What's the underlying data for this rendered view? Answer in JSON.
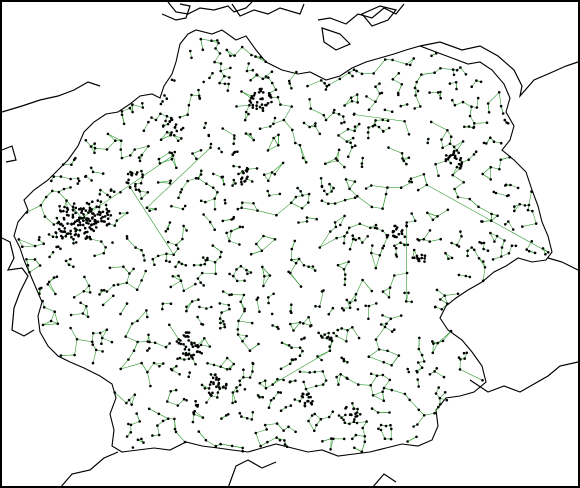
{
  "map": {
    "type": "power-grid-network",
    "region": "Germany",
    "colors": {
      "background": "#ffffff",
      "frame": "#000000",
      "borders": "#000000",
      "coastline": "#000000",
      "lines": "#2f9a2f",
      "nodes": "#000000"
    },
    "layers": [
      "country-borders",
      "coastline",
      "transmission-lines",
      "substations"
    ]
  }
}
